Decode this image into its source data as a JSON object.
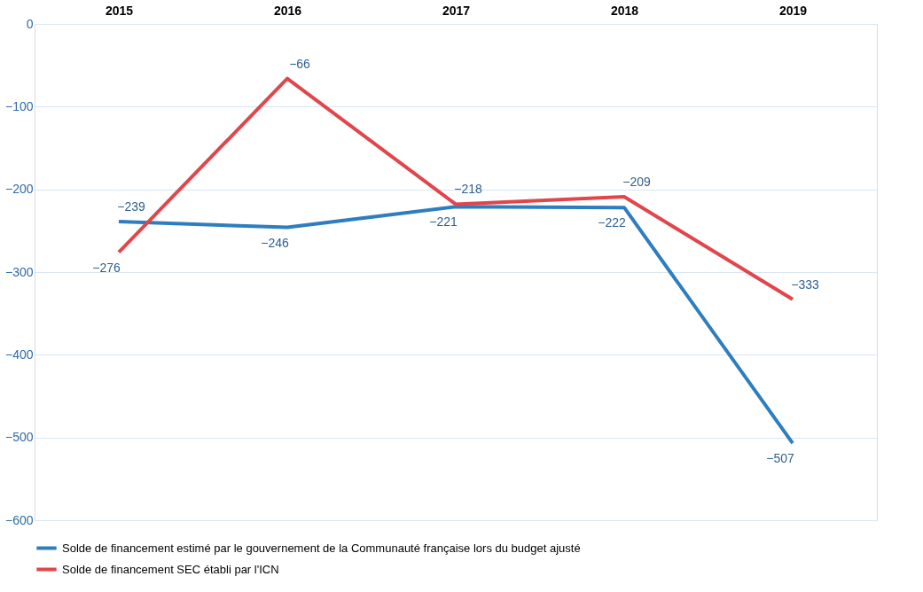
{
  "chart_data": {
    "type": "line",
    "categories": [
      "2015",
      "2016",
      "2017",
      "2018",
      "2019"
    ],
    "series": [
      {
        "name": "Solde de financement estimé par le gouvernement de la Communauté française lors du budget ajusté",
        "color": "#2e7ebf",
        "values": [
          -239,
          -246,
          -221,
          -222,
          -507
        ]
      },
      {
        "name": "Solde de financement SEC établi par l'ICN",
        "color": "#e0464b",
        "values": [
          -276,
          -66,
          -218,
          -209,
          -333
        ]
      }
    ],
    "ylim": [
      -600,
      0
    ],
    "yticks": [
      0,
      -100,
      -200,
      -300,
      -400,
      -500,
      -600
    ],
    "grid": "y",
    "legend": "bottom",
    "data_labels": true,
    "marker": "none",
    "line_style": "solid"
  }
}
